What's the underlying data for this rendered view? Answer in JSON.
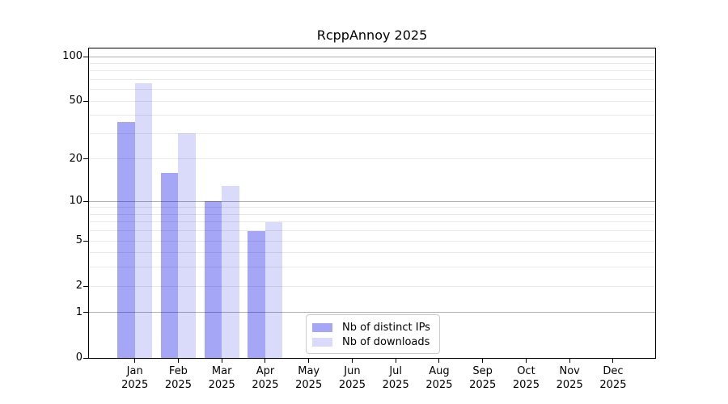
{
  "chart_data": {
    "type": "bar",
    "title": "RcppAnnoy 2025",
    "categories": [
      "Jan",
      "Feb",
      "Mar",
      "Apr",
      "May",
      "Jun",
      "Jul",
      "Aug",
      "Sep",
      "Oct",
      "Nov",
      "Dec"
    ],
    "year_label": "2025",
    "series": [
      {
        "key": "ips",
        "name": "Nb of distinct IPs",
        "color": "rgba(0,0,230,0.35)",
        "values": [
          36,
          16,
          10,
          6,
          0,
          0,
          0,
          0,
          0,
          0,
          0,
          0
        ]
      },
      {
        "key": "downloads",
        "name": "Nb of downloads",
        "color": "rgba(0,0,230,0.145)",
        "values": [
          66,
          30,
          13,
          7,
          0,
          0,
          0,
          0,
          0,
          0,
          0,
          0
        ]
      }
    ],
    "xlabel": "",
    "ylabel": "",
    "yscale": "log1p",
    "ylim": [
      0,
      113
    ],
    "yticks": [
      0,
      1,
      2,
      5,
      10,
      20,
      50,
      100
    ],
    "major_gridlines": [
      1,
      10,
      100
    ],
    "minor_gridlines": [
      2,
      3,
      4,
      5,
      6,
      7,
      8,
      9,
      20,
      30,
      40,
      50,
      60,
      70,
      80,
      90
    ],
    "grid": true,
    "legend_position": "lower center"
  },
  "colors": {
    "bar_ips": "rgba(0,0,230,0.35)",
    "bar_downloads": "rgba(0,0,230,0.145)",
    "major_grid": "#b0b0b0",
    "minor_grid": "#e9e9e9",
    "axis": "#000000",
    "legend_border": "#cccccc",
    "text": "#000000"
  }
}
